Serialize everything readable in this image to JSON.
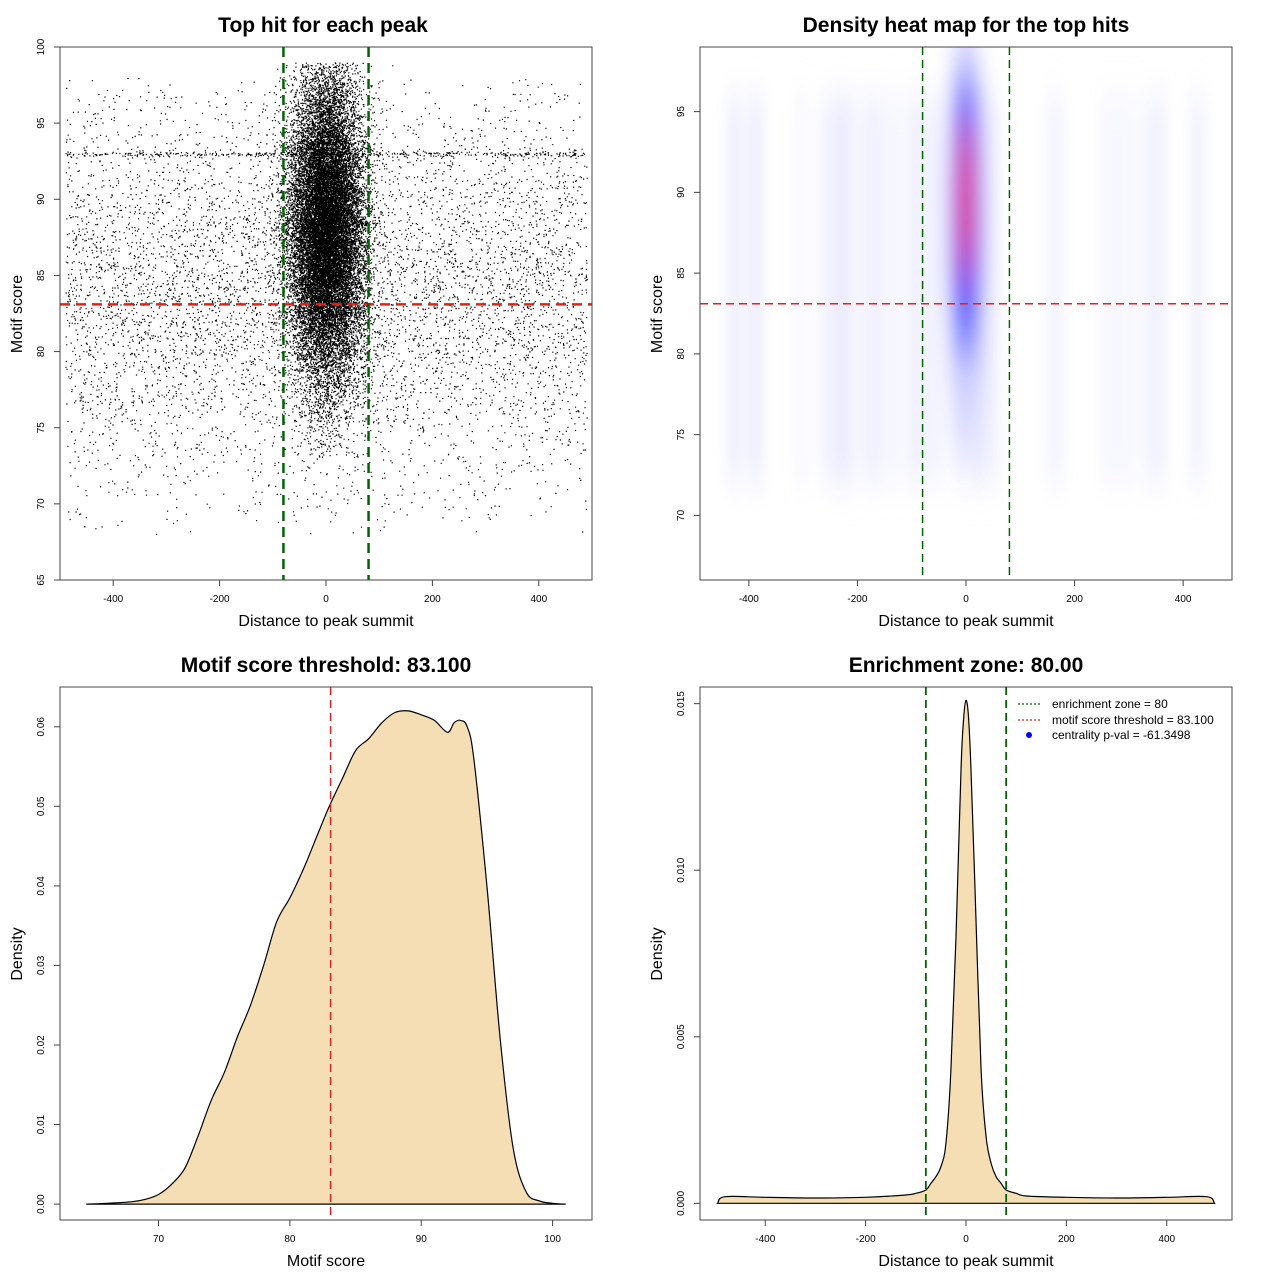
{
  "chart_data": [
    {
      "type": "scatter",
      "title": "Top hit for each peak",
      "xlabel": "Distance to peak summit",
      "ylabel": "Motif score",
      "xlim": [
        -500,
        500
      ],
      "ylim": [
        65,
        100
      ],
      "xticks": [
        -400,
        -200,
        0,
        200,
        400
      ],
      "yticks": [
        65,
        70,
        75,
        80,
        85,
        90,
        95,
        100
      ],
      "background_points": {
        "x_range": [
          -490,
          490
        ],
        "y_range": [
          68,
          98
        ],
        "density": "uniform"
      },
      "central_cluster": {
        "x_center": 0,
        "x_spread": 35,
        "y_center": 88,
        "y_range": [
          73,
          99
        ],
        "density": "very high"
      },
      "threshold_line": {
        "y": 83.1,
        "color": "#dd2222",
        "style": "dashed"
      },
      "zone_lines": {
        "x": [
          -80,
          80
        ],
        "color": "#006400",
        "style": "dashed"
      },
      "grid": false
    },
    {
      "type": "heatmap",
      "title": "Density heat map for the top hits",
      "xlabel": "Distance to peak summit",
      "ylabel": "Motif score",
      "xlim": [
        -490,
        490
      ],
      "ylim": [
        66,
        99
      ],
      "xticks": [
        -400,
        -200,
        0,
        200,
        400
      ],
      "yticks": [
        70,
        75,
        80,
        85,
        90,
        95
      ],
      "colormap": [
        "#ffffff",
        "#0000ff",
        "#ff0000"
      ],
      "hotspot": {
        "x_center": 0,
        "x_width": 40,
        "y_center": 89.5,
        "y_range": [
          72,
          99
        ],
        "peak_color": "#ff0000"
      },
      "threshold_line": {
        "y": 83.1,
        "color": "#dd2222",
        "style": "dashed"
      },
      "zone_lines": {
        "x": [
          -80,
          80
        ],
        "color": "#006400",
        "style": "dashed"
      },
      "grid": false
    },
    {
      "type": "area",
      "title": "Motif score threshold: 83.100",
      "xlabel": "Motif score",
      "ylabel": "Density",
      "xlim": [
        62.5,
        103
      ],
      "ylim": [
        -0.002,
        0.065
      ],
      "xticks": [
        70,
        80,
        90,
        100
      ],
      "yticks": [
        0.0,
        0.01,
        0.02,
        0.03,
        0.04,
        0.05,
        0.06
      ],
      "ytick_labels": [
        "0.00",
        "0.01",
        "0.02",
        "0.03",
        "0.04",
        "0.05",
        "0.06"
      ],
      "fill": "#f5deb3",
      "x": [
        64.5,
        66,
        68,
        69,
        70,
        71,
        72,
        73,
        74,
        75,
        76,
        77,
        78,
        79,
        80,
        81,
        82,
        83,
        84,
        85,
        86,
        87,
        88,
        89,
        90,
        91,
        92,
        92.5,
        93,
        93.5,
        94,
        95,
        96,
        97,
        98,
        99,
        100,
        101
      ],
      "y": [
        0.0,
        0.0001,
        0.0003,
        0.0006,
        0.0012,
        0.0025,
        0.0045,
        0.0085,
        0.013,
        0.0165,
        0.021,
        0.025,
        0.03,
        0.0355,
        0.0385,
        0.042,
        0.046,
        0.05,
        0.0535,
        0.057,
        0.0585,
        0.0605,
        0.0618,
        0.062,
        0.0615,
        0.0608,
        0.0593,
        0.0605,
        0.0608,
        0.06,
        0.056,
        0.04,
        0.021,
        0.007,
        0.0015,
        0.0004,
        0.0001,
        0.0
      ],
      "threshold_line": {
        "x": 83.1,
        "color": "#dd2222",
        "style": "dashed"
      },
      "grid": false
    },
    {
      "type": "area",
      "title": "Enrichment zone: 80.00",
      "xlabel": "Distance to peak summit",
      "ylabel": "Density",
      "xlim": [
        -530,
        530
      ],
      "ylim": [
        -0.0005,
        0.0155
      ],
      "xticks": [
        -400,
        -200,
        0,
        200,
        400
      ],
      "yticks": [
        0.0,
        0.005,
        0.01,
        0.015
      ],
      "ytick_labels": [
        "0.000",
        "0.005",
        "0.010",
        "0.015"
      ],
      "fill": "#f5deb3",
      "x": [
        -495,
        -480,
        -400,
        -300,
        -200,
        -120,
        -100,
        -80,
        -70,
        -60,
        -50,
        -40,
        -30,
        -20,
        -10,
        -5,
        0,
        5,
        10,
        20,
        30,
        40,
        50,
        60,
        70,
        80,
        100,
        120,
        200,
        300,
        400,
        480,
        495
      ],
      "y": [
        0.0,
        0.0002,
        0.00018,
        0.00016,
        0.00018,
        0.00025,
        0.0003,
        0.0004,
        0.0006,
        0.0008,
        0.0011,
        0.0018,
        0.004,
        0.008,
        0.013,
        0.0145,
        0.0151,
        0.0146,
        0.013,
        0.0085,
        0.004,
        0.002,
        0.0012,
        0.0008,
        0.0006,
        0.0004,
        0.0003,
        0.00022,
        0.00018,
        0.00016,
        0.00018,
        0.0002,
        0.0
      ],
      "zone_lines": {
        "x": [
          -80,
          80
        ],
        "color": "#006400",
        "style": "dashed"
      },
      "legend": {
        "placement": "top-right",
        "entries": [
          {
            "label": "enrichment zone = 80",
            "color": "#006400",
            "style": "dotted-line"
          },
          {
            "label": "motif score threshold = 83.100",
            "color": "#dd2222",
            "style": "dotted-line"
          },
          {
            "label": "centrality p-val = -61.3498",
            "color": "#0000ff",
            "style": "point"
          }
        ]
      },
      "grid": false
    }
  ]
}
